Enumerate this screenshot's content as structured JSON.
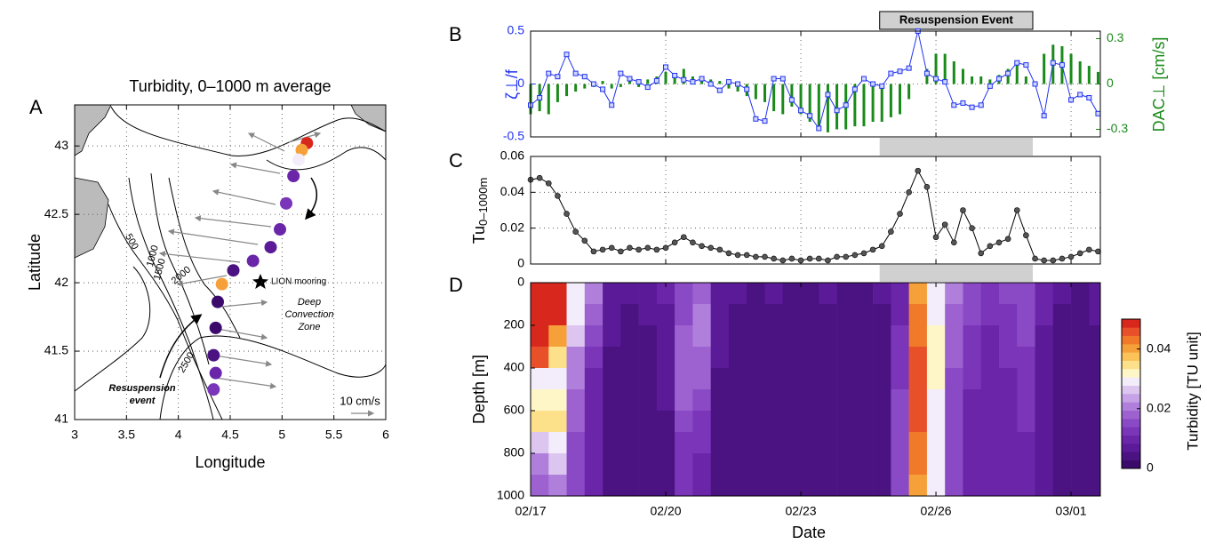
{
  "chart_data": [
    {
      "type": "scatter",
      "panel_label": "A",
      "title": "Turbidity, 0–1000 m average",
      "xlabel": "Longitude",
      "ylabel": "Latitude",
      "xlim": [
        3,
        6
      ],
      "ylim": [
        41,
        43.3
      ],
      "xticks": [
        3,
        3.5,
        4,
        4.5,
        5,
        5.5,
        6
      ],
      "yticks": [
        41,
        41.5,
        42,
        42.5,
        43
      ],
      "grid": true,
      "x": [
        5.24,
        5.19,
        5.16,
        5.11,
        5.04,
        4.98,
        4.89,
        4.72,
        4.53,
        4.42,
        4.38,
        4.36,
        4.34,
        4.36,
        4.34
      ],
      "y": [
        43.02,
        42.97,
        42.9,
        42.78,
        42.58,
        42.39,
        42.26,
        42.16,
        42.09,
        41.99,
        41.86,
        41.67,
        41.47,
        41.34,
        41.22
      ],
      "values": [
        0.05,
        0.04,
        0.03,
        0.01,
        0.012,
        0.01,
        0.008,
        0.01,
        0.005,
        0.04,
        0.0,
        0.0,
        0.003,
        0.01,
        0.012
      ],
      "contour_labels": [
        "500",
        "1000",
        "1500",
        "2000",
        "2500"
      ],
      "annotations": [
        "LION mooring",
        "Deep",
        "Convection",
        "Zone",
        "Resuspension",
        "event",
        "10 cm/s"
      ]
    },
    {
      "type": "combo",
      "panel_label": "B",
      "ylabel": "ζ⊥/f",
      "y2label": "DAC⊥ [cm/s]",
      "annotation": "Resuspension Event",
      "shade": [
        7.75,
        11.15
      ],
      "xlim": [
        0,
        12.65
      ],
      "xticks": [
        0,
        3,
        6,
        9,
        12
      ],
      "grid": true,
      "ylim": [
        -0.5,
        0.5
      ],
      "yticks": [
        -0.5,
        0,
        0.5
      ],
      "y2lim": [
        -0.35,
        0.35
      ],
      "y2ticks": [
        -0.3,
        0,
        0.3
      ],
      "x": [
        0,
        0.2,
        0.4,
        0.6,
        0.8,
        1,
        1.2,
        1.4,
        1.6,
        1.8,
        2,
        2.2,
        2.4,
        2.6,
        2.8,
        3,
        3.2,
        3.4,
        3.6,
        3.8,
        4,
        4.2,
        4.4,
        4.6,
        4.8,
        5,
        5.2,
        5.4,
        5.6,
        5.8,
        6,
        6.2,
        6.4,
        6.6,
        6.8,
        7,
        7.2,
        7.4,
        7.6,
        7.8,
        8,
        8.2,
        8.4,
        8.6,
        8.8,
        9,
        9.2,
        9.4,
        9.6,
        9.8,
        10,
        10.2,
        10.4,
        10.6,
        10.8,
        11,
        11.2,
        11.4,
        11.6,
        11.8,
        12,
        12.2,
        12.4,
        12.6
      ],
      "series": [
        {
          "style": "line",
          "color": "#2233ee",
          "values": [
            -0.2,
            -0.13,
            0.1,
            0.07,
            0.28,
            0.1,
            0.07,
            0,
            -0.05,
            -0.2,
            0.1,
            0.05,
            0.02,
            -0.03,
            0.03,
            0.16,
            0.08,
            0.04,
            0.02,
            0.05,
            0,
            -0.06,
            0.02,
            0,
            -0.05,
            -0.33,
            -0.35,
            0.05,
            0.05,
            -0.15,
            -0.25,
            -0.3,
            -0.42,
            -0.1,
            -0.25,
            -0.2,
            -0.05,
            0.05,
            0,
            -0.02,
            0.1,
            0.12,
            0.15,
            0.5,
            0.1,
            0.05,
            0.02,
            -0.2,
            -0.18,
            -0.22,
            -0.2,
            -0.02,
            0.05,
            0.1,
            0.2,
            0.18,
            0,
            -0.3,
            0.2,
            0.18,
            -0.15,
            -0.1,
            -0.13,
            -0.28
          ]
        },
        {
          "style": "bar",
          "axis": "y2",
          "color": "#1a8a1a",
          "values": [
            -0.2,
            -0.18,
            -0.2,
            -0.12,
            -0.08,
            -0.05,
            -0.03,
            -0.02,
            0.02,
            -0.03,
            -0.02,
            0.03,
            -0.02,
            0.03,
            0.05,
            0.08,
            0.06,
            0.1,
            0.05,
            0.03,
            0.03,
            0.02,
            -0.03,
            -0.05,
            -0.08,
            -0.1,
            -0.12,
            -0.18,
            -0.2,
            -0.15,
            -0.2,
            -0.25,
            -0.3,
            -0.32,
            -0.3,
            -0.3,
            -0.28,
            -0.28,
            -0.25,
            -0.25,
            -0.22,
            -0.2,
            -0.1,
            0,
            0.1,
            0.2,
            0.2,
            0.15,
            0.1,
            0.05,
            0.05,
            0.03,
            0.06,
            0.1,
            0.13,
            0.05,
            0,
            0.2,
            0.26,
            0.25,
            0.2,
            0.15,
            0.12,
            0.08
          ]
        }
      ]
    },
    {
      "type": "line",
      "panel_label": "C",
      "ylabel": "Tu",
      "ylabel_sub": "0–1000m",
      "color": "#555555",
      "xlim": [
        0,
        12.65
      ],
      "xticks": [
        0,
        3,
        6,
        9,
        12
      ],
      "grid": true,
      "ylim": [
        0,
        0.06
      ],
      "yticks": [
        0,
        0.02,
        0.04,
        0.06
      ],
      "x": [
        0,
        0.2,
        0.4,
        0.6,
        0.8,
        1,
        1.2,
        1.4,
        1.6,
        1.8,
        2,
        2.2,
        2.4,
        2.6,
        2.8,
        3,
        3.2,
        3.4,
        3.6,
        3.8,
        4,
        4.2,
        4.4,
        4.6,
        4.8,
        5,
        5.2,
        5.4,
        5.6,
        5.8,
        6,
        6.2,
        6.4,
        6.6,
        6.8,
        7,
        7.2,
        7.4,
        7.6,
        7.8,
        8,
        8.2,
        8.4,
        8.6,
        8.8,
        9,
        9.2,
        9.4,
        9.6,
        9.8,
        10,
        10.2,
        10.4,
        10.6,
        10.8,
        11,
        11.2,
        11.4,
        11.6,
        11.8,
        12,
        12.2,
        12.4,
        12.6
      ],
      "values": [
        0.047,
        0.048,
        0.045,
        0.038,
        0.028,
        0.018,
        0.013,
        0.007,
        0.008,
        0.009,
        0.007,
        0.009,
        0.008,
        0.009,
        0.008,
        0.009,
        0.012,
        0.015,
        0.012,
        0.01,
        0.009,
        0.008,
        0.006,
        0.005,
        0.005,
        0.004,
        0.004,
        0.003,
        0.002,
        0.003,
        0.002,
        0.003,
        0.003,
        0.002,
        0.004,
        0.004,
        0.005,
        0.006,
        0.008,
        0.01,
        0.018,
        0.028,
        0.04,
        0.052,
        0.043,
        0.015,
        0.022,
        0.012,
        0.03,
        0.02,
        0.006,
        0.01,
        0.012,
        0.014,
        0.03,
        0.016,
        0.003,
        0.002,
        0.002,
        0.003,
        0.004,
        0.006,
        0.008,
        0.007
      ]
    },
    {
      "type": "heatmap",
      "panel_label": "D",
      "xlabel": "Date",
      "ylabel": "Depth [m]",
      "colorbar_label": "Turbidity [TU unit]",
      "xlim": [
        0,
        12.65
      ],
      "xticks": [
        {
          "value": 0,
          "label": "02/17"
        },
        {
          "value": 3,
          "label": "02/20"
        },
        {
          "value": 6,
          "label": "02/23"
        },
        {
          "value": 9,
          "label": "02/26"
        },
        {
          "value": 12,
          "label": "03/01"
        }
      ],
      "ylim": [
        1000,
        0
      ],
      "yticks": [
        0,
        200,
        400,
        600,
        800,
        1000
      ],
      "grid": false,
      "clim": [
        0,
        0.05
      ],
      "cticks": [
        0,
        0.02,
        0.04
      ],
      "colormap": [
        "#3b0a6b",
        "#4b1282",
        "#5b1a97",
        "#6a25a8",
        "#7a35b8",
        "#8b4ac5",
        "#9d62d0",
        "#b07fdb",
        "#c6a2e6",
        "#dcc6f0",
        "#f3ecfa",
        "#fff6c8",
        "#fde08a",
        "#fbc25a",
        "#f6a03a",
        "#f07a2a",
        "#e8502a",
        "#d8281e"
      ],
      "x_edges": [
        0,
        0.4,
        0.8,
        1.2,
        1.6,
        2,
        2.4,
        2.8,
        3.2,
        3.6,
        4,
        4.4,
        4.8,
        5.2,
        5.6,
        6,
        6.4,
        6.8,
        7.2,
        7.6,
        8,
        8.4,
        8.8,
        9.2,
        9.6,
        10,
        10.4,
        10.8,
        11.2,
        11.6,
        12,
        12.4,
        12.8
      ],
      "y_edges": [
        0,
        100,
        200,
        300,
        400,
        500,
        600,
        700,
        800,
        900,
        1000
      ],
      "z": [
        [
          0.05,
          0.05,
          0.03,
          0.02,
          0.008,
          0.006,
          0.008,
          0.01,
          0.015,
          0.018,
          0.008,
          0.006,
          0.005,
          0.006,
          0.004,
          0.005,
          0.006,
          0.005,
          0.004,
          0.006,
          0.01,
          0.04,
          0.03,
          0.02,
          0.015,
          0.012,
          0.014,
          0.016,
          0.01,
          0.006,
          0.005,
          0.008
        ],
        [
          0.05,
          0.048,
          0.028,
          0.018,
          0.007,
          0.005,
          0.006,
          0.008,
          0.016,
          0.02,
          0.007,
          0.005,
          0.004,
          0.005,
          0.004,
          0.004,
          0.005,
          0.004,
          0.004,
          0.005,
          0.01,
          0.042,
          0.03,
          0.018,
          0.014,
          0.012,
          0.013,
          0.015,
          0.009,
          0.005,
          0.004,
          0.006
        ],
        [
          0.05,
          0.04,
          0.025,
          0.015,
          0.006,
          0.004,
          0.005,
          0.007,
          0.017,
          0.02,
          0.006,
          0.004,
          0.004,
          0.004,
          0.003,
          0.004,
          0.004,
          0.003,
          0.004,
          0.005,
          0.012,
          0.043,
          0.032,
          0.018,
          0.013,
          0.011,
          0.012,
          0.014,
          0.008,
          0.005,
          0.004,
          0.005
        ],
        [
          0.045,
          0.035,
          0.022,
          0.012,
          0.005,
          0.004,
          0.004,
          0.006,
          0.018,
          0.019,
          0.006,
          0.004,
          0.003,
          0.003,
          0.003,
          0.003,
          0.004,
          0.003,
          0.003,
          0.004,
          0.012,
          0.045,
          0.033,
          0.017,
          0.012,
          0.011,
          0.012,
          0.013,
          0.008,
          0.004,
          0.004,
          0.005
        ],
        [
          0.03,
          0.03,
          0.02,
          0.01,
          0.005,
          0.004,
          0.004,
          0.006,
          0.018,
          0.017,
          0.005,
          0.004,
          0.003,
          0.003,
          0.003,
          0.003,
          0.003,
          0.003,
          0.003,
          0.004,
          0.013,
          0.046,
          0.032,
          0.016,
          0.012,
          0.01,
          0.011,
          0.013,
          0.007,
          0.004,
          0.003,
          0.005
        ],
        [
          0.033,
          0.032,
          0.018,
          0.01,
          0.005,
          0.004,
          0.004,
          0.006,
          0.017,
          0.015,
          0.005,
          0.004,
          0.003,
          0.003,
          0.003,
          0.003,
          0.003,
          0.003,
          0.003,
          0.004,
          0.014,
          0.046,
          0.03,
          0.015,
          0.011,
          0.01,
          0.011,
          0.012,
          0.007,
          0.004,
          0.003,
          0.005
        ],
        [
          0.035,
          0.036,
          0.018,
          0.01,
          0.005,
          0.004,
          0.004,
          0.005,
          0.015,
          0.013,
          0.005,
          0.004,
          0.003,
          0.003,
          0.003,
          0.003,
          0.003,
          0.003,
          0.003,
          0.004,
          0.015,
          0.045,
          0.03,
          0.015,
          0.011,
          0.01,
          0.01,
          0.012,
          0.007,
          0.004,
          0.003,
          0.004
        ],
        [
          0.025,
          0.03,
          0.016,
          0.01,
          0.005,
          0.004,
          0.004,
          0.005,
          0.013,
          0.012,
          0.005,
          0.004,
          0.003,
          0.003,
          0.003,
          0.003,
          0.003,
          0.003,
          0.003,
          0.004,
          0.016,
          0.044,
          0.03,
          0.014,
          0.011,
          0.01,
          0.01,
          0.011,
          0.007,
          0.004,
          0.003,
          0.004
        ],
        [
          0.02,
          0.025,
          0.016,
          0.01,
          0.005,
          0.004,
          0.004,
          0.005,
          0.012,
          0.011,
          0.005,
          0.004,
          0.004,
          0.003,
          0.003,
          0.003,
          0.003,
          0.003,
          0.003,
          0.004,
          0.016,
          0.042,
          0.028,
          0.014,
          0.011,
          0.01,
          0.01,
          0.011,
          0.007,
          0.004,
          0.003,
          0.004
        ],
        [
          0.018,
          0.02,
          0.015,
          0.01,
          0.005,
          0.004,
          0.004,
          0.005,
          0.012,
          0.011,
          0.005,
          0.004,
          0.004,
          0.003,
          0.003,
          0.003,
          0.003,
          0.003,
          0.003,
          0.004,
          0.016,
          0.04,
          0.028,
          0.014,
          0.011,
          0.01,
          0.01,
          0.011,
          0.007,
          0.004,
          0.003,
          0.004
        ]
      ]
    }
  ]
}
